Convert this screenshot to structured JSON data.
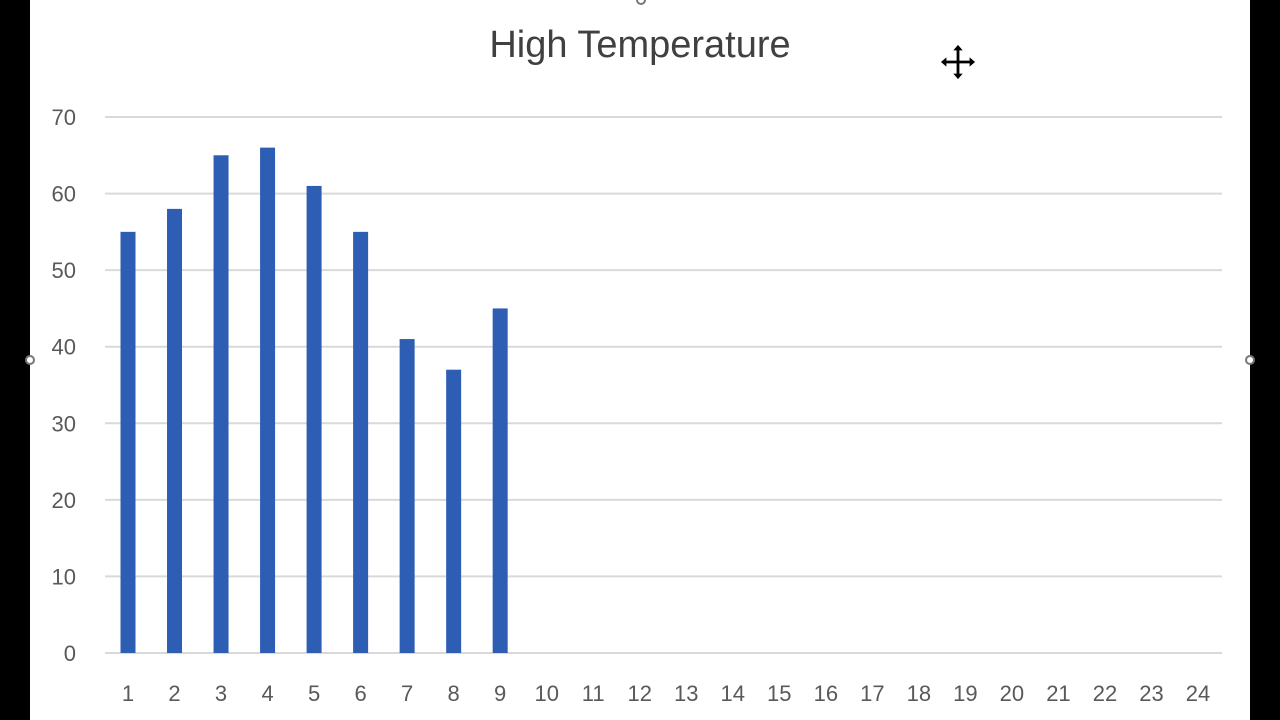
{
  "chart_data": {
    "type": "bar",
    "title": "High Temperature",
    "categories": [
      "1",
      "2",
      "3",
      "4",
      "5",
      "6",
      "7",
      "8",
      "9",
      "10",
      "11",
      "12",
      "13",
      "14",
      "15",
      "16",
      "17",
      "18",
      "19",
      "20",
      "21",
      "22",
      "23",
      "24"
    ],
    "values": [
      55,
      58,
      65,
      66,
      61,
      55,
      41,
      37,
      45,
      null,
      null,
      null,
      null,
      null,
      null,
      null,
      null,
      null,
      null,
      null,
      null,
      null,
      null,
      null
    ],
    "xlabel": "",
    "ylabel": "",
    "ylim": [
      0,
      70
    ],
    "yticks": [
      0,
      10,
      20,
      30,
      40,
      50,
      60,
      70
    ],
    "grid": true,
    "bar_color": "#2e5eb3",
    "grid_color": "#d9d9d9"
  },
  "icons": {
    "cursor": "move-cursor-icon"
  }
}
